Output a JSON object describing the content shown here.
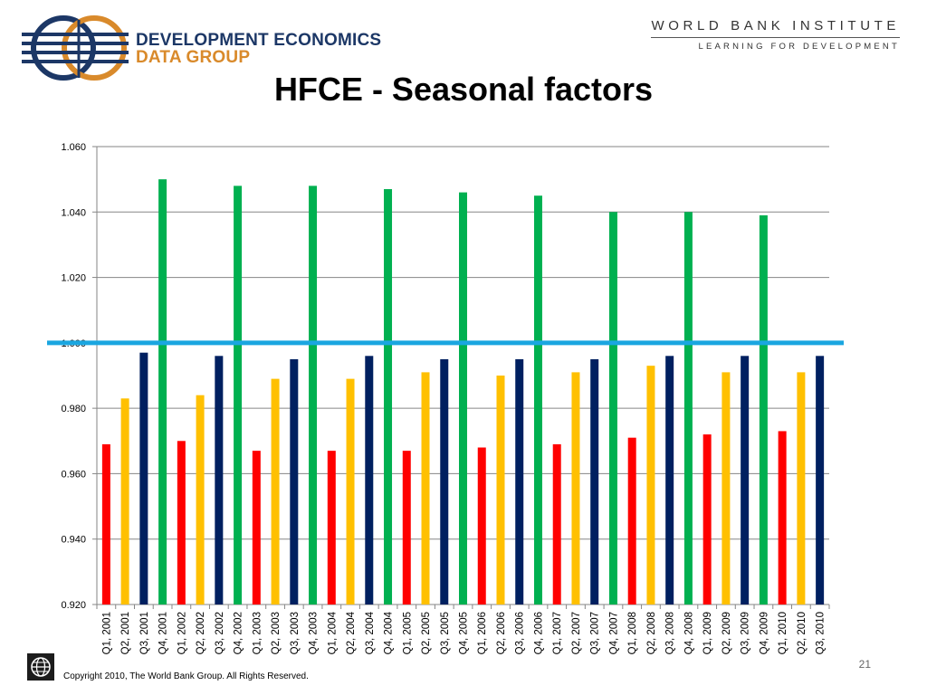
{
  "header": {
    "logo_line1": "DEVELOPMENT ECONOMICS",
    "logo_line2": "DATA GROUP",
    "institute_name": "WORLD BANK INSTITUTE",
    "institute_tagline": "LEARNING FOR DEVELOPMENT",
    "logo_colors": {
      "navy": "#1c3766",
      "orange": "#d98a2b"
    }
  },
  "slide": {
    "title": "HFCE - Seasonal factors",
    "page_number": "21",
    "copyright": "Copyright 2010, The World Bank Group. All Rights Reserved."
  },
  "chart_data": {
    "type": "bar",
    "title": "HFCE - Seasonal factors",
    "xlabel": "",
    "ylabel": "",
    "ylim": [
      0.92,
      1.06
    ],
    "yticks": [
      "0.920",
      "0.940",
      "0.960",
      "0.980",
      "1.000",
      "1.020",
      "1.040",
      "1.060"
    ],
    "grid": true,
    "reference_line": {
      "value": 1.0,
      "color": "#1aa6e0"
    },
    "quarter_colors": {
      "Q1": "#ff0000",
      "Q2": "#ffc000",
      "Q3": "#002060",
      "Q4": "#00b050"
    },
    "categories": [
      "Q1, 2001",
      "Q2, 2001",
      "Q3, 2001",
      "Q4, 2001",
      "Q1, 2002",
      "Q2, 2002",
      "Q3, 2002",
      "Q4, 2002",
      "Q1, 2003",
      "Q2, 2003",
      "Q3, 2003",
      "Q4, 2003",
      "Q1, 2004",
      "Q2, 2004",
      "Q3, 2004",
      "Q4, 2004",
      "Q1, 2005",
      "Q2, 2005",
      "Q3, 2005",
      "Q4, 2005",
      "Q1, 2006",
      "Q2, 2006",
      "Q3, 2006",
      "Q4, 2006",
      "Q1, 2007",
      "Q2, 2007",
      "Q3, 2007",
      "Q4, 2007",
      "Q1, 2008",
      "Q2, 2008",
      "Q3, 2008",
      "Q4, 2008",
      "Q1, 2009",
      "Q2, 2009",
      "Q3, 2009",
      "Q4, 2009",
      "Q1, 2010",
      "Q2, 2010",
      "Q3, 2010"
    ],
    "values": [
      0.969,
      0.983,
      0.997,
      1.05,
      0.97,
      0.984,
      0.996,
      1.048,
      0.967,
      0.989,
      0.995,
      1.048,
      0.967,
      0.989,
      0.996,
      1.047,
      0.967,
      0.991,
      0.995,
      1.046,
      0.968,
      0.99,
      0.995,
      1.045,
      0.969,
      0.991,
      0.995,
      1.04,
      0.971,
      0.993,
      0.996,
      1.04,
      0.972,
      0.991,
      0.996,
      1.039,
      0.973,
      0.991,
      0.996
    ]
  }
}
